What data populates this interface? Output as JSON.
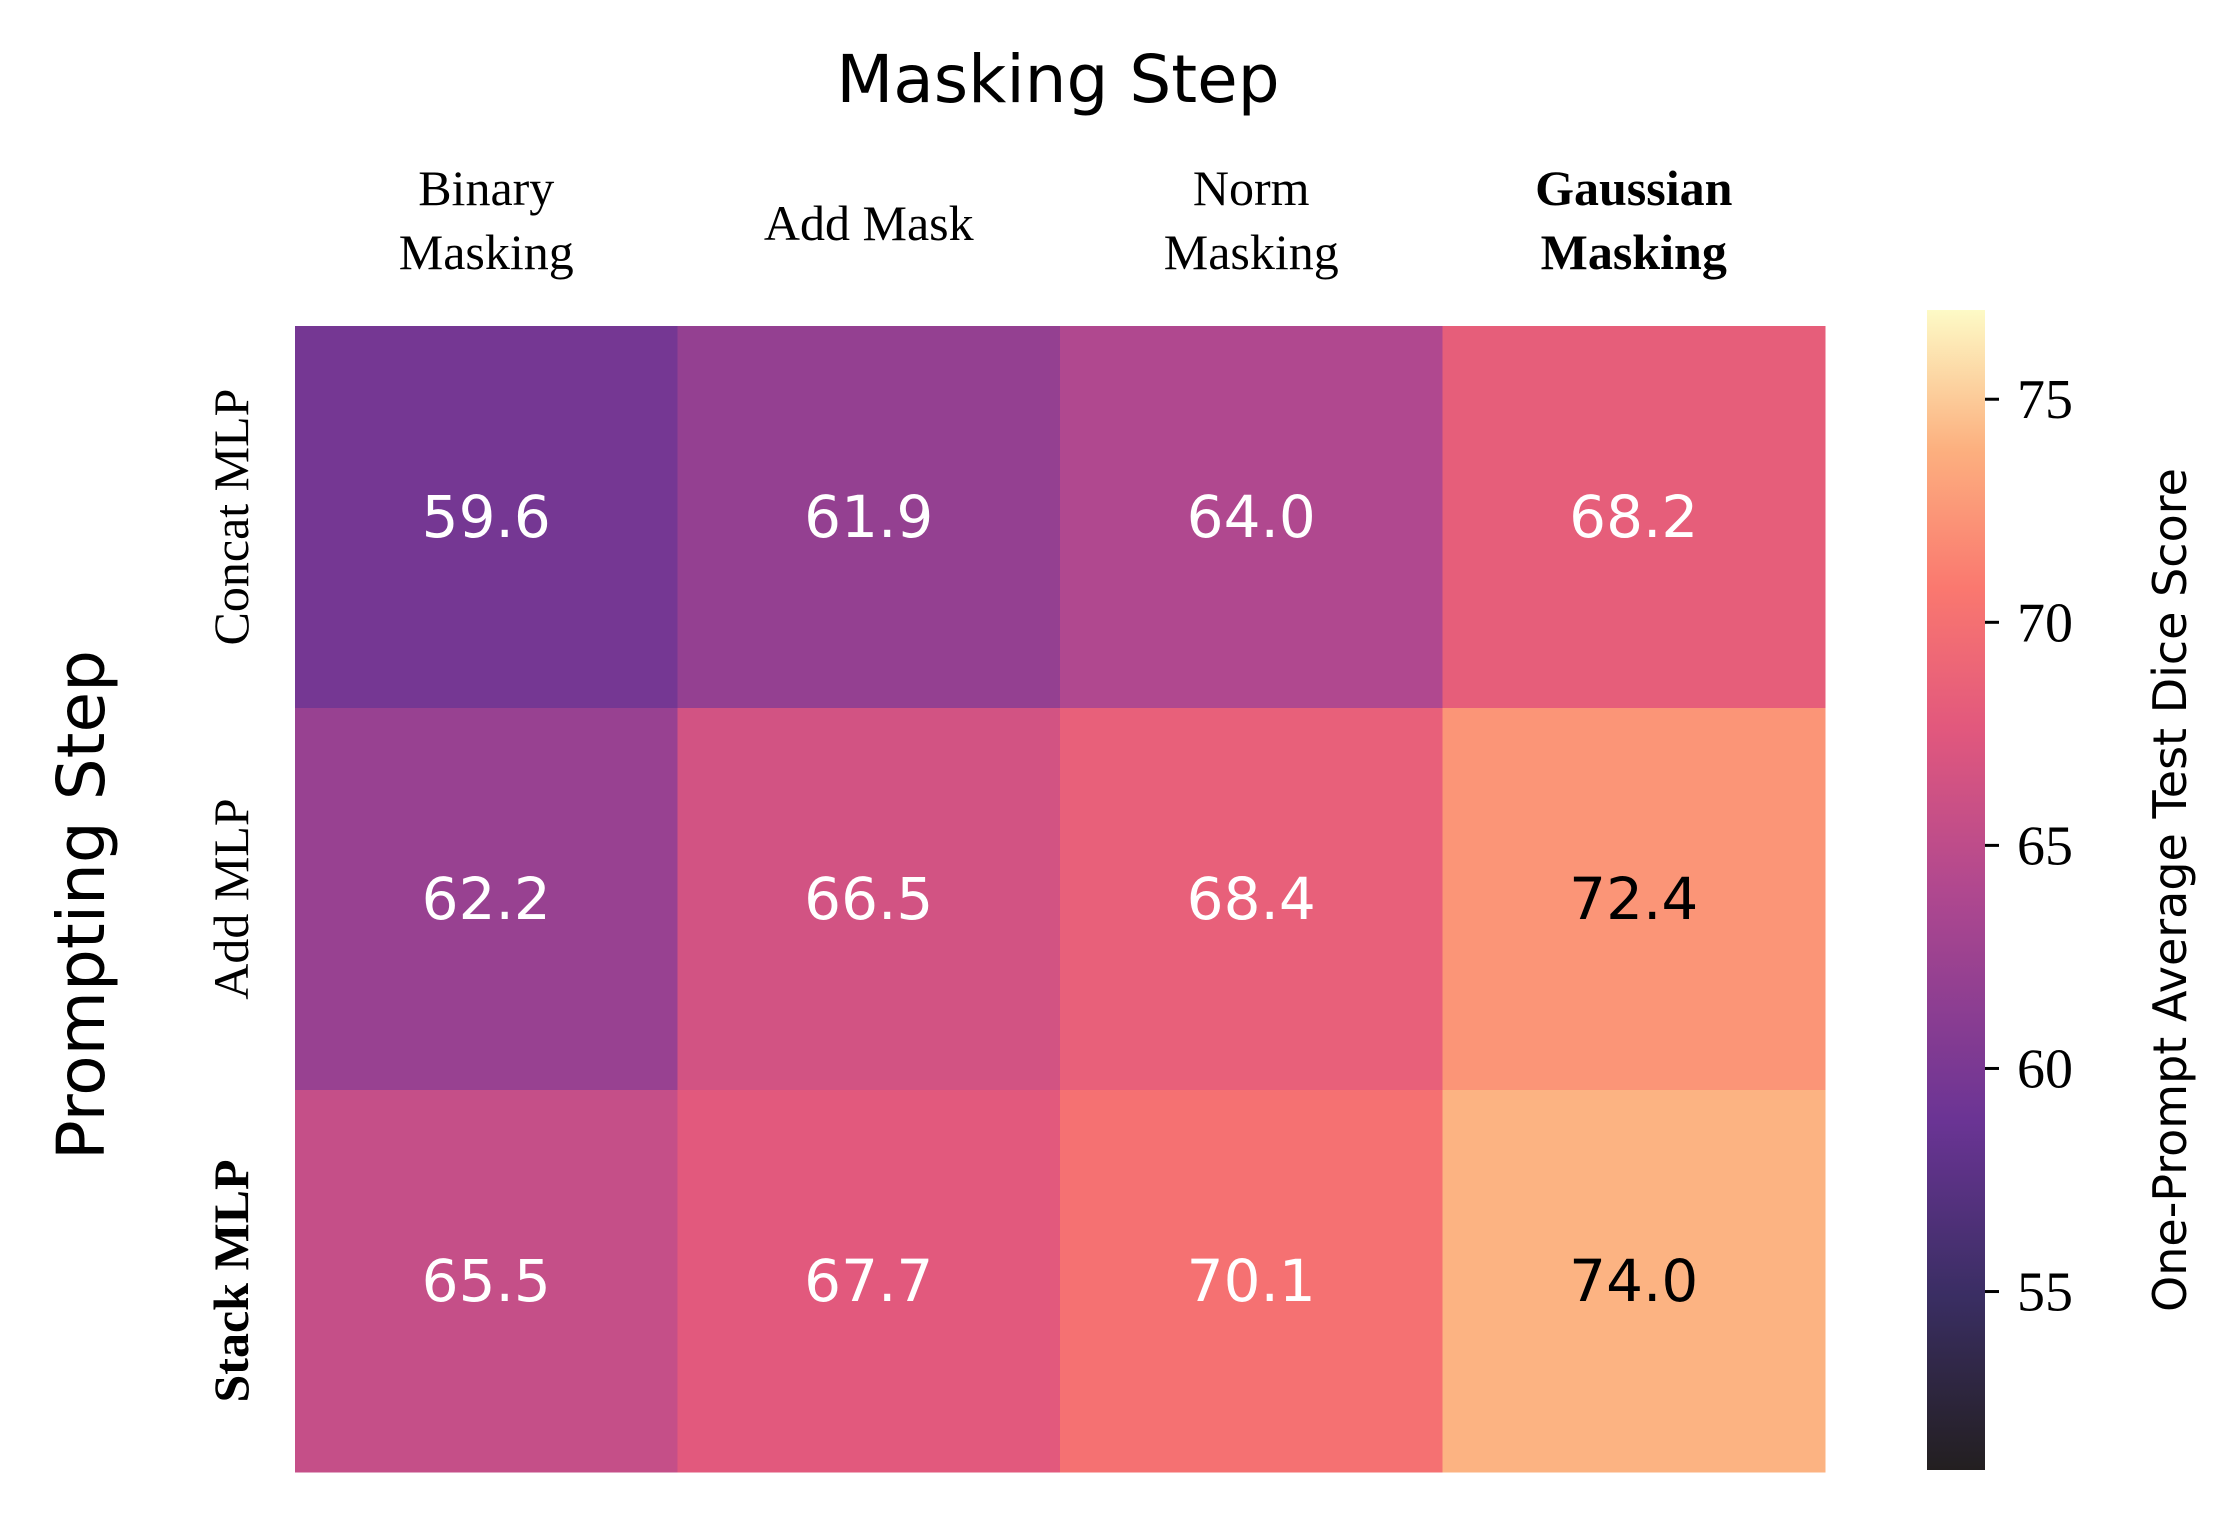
{
  "chart_data": {
    "type": "heatmap",
    "x_title": "Masking Step",
    "y_title": "Prompting Step",
    "columns": [
      {
        "lines": [
          "Binary",
          "Masking"
        ],
        "bold": false
      },
      {
        "lines": [
          "Add Mask"
        ],
        "bold": false
      },
      {
        "lines": [
          "Norm",
          "Masking"
        ],
        "bold": false
      },
      {
        "lines": [
          "Gaussian",
          "Masking"
        ],
        "bold": true
      }
    ],
    "rows": [
      {
        "label": "Concat MLP",
        "bold": false
      },
      {
        "label": "Add MLP",
        "bold": false
      },
      {
        "label": "Stack MLP",
        "bold": true
      }
    ],
    "values": [
      [
        59.6,
        61.9,
        64.0,
        68.2
      ],
      [
        62.2,
        66.5,
        68.4,
        72.4
      ],
      [
        65.5,
        67.7,
        70.1,
        74.0
      ]
    ],
    "value_labels": [
      [
        "59.6",
        "61.9",
        "64.0",
        "68.2"
      ],
      [
        "62.2",
        "66.5",
        "68.4",
        "72.4"
      ],
      [
        "65.5",
        "67.7",
        "70.1",
        "74.0"
      ]
    ],
    "colormap": "magma",
    "colorbar": {
      "label": "One-Prompt Average Test Dice Score",
      "range": [
        51,
        77
      ],
      "ticks": [
        55,
        60,
        65,
        70,
        75
      ],
      "tick_labels": [
        "55",
        "60",
        "65",
        "70",
        "75"
      ]
    }
  }
}
